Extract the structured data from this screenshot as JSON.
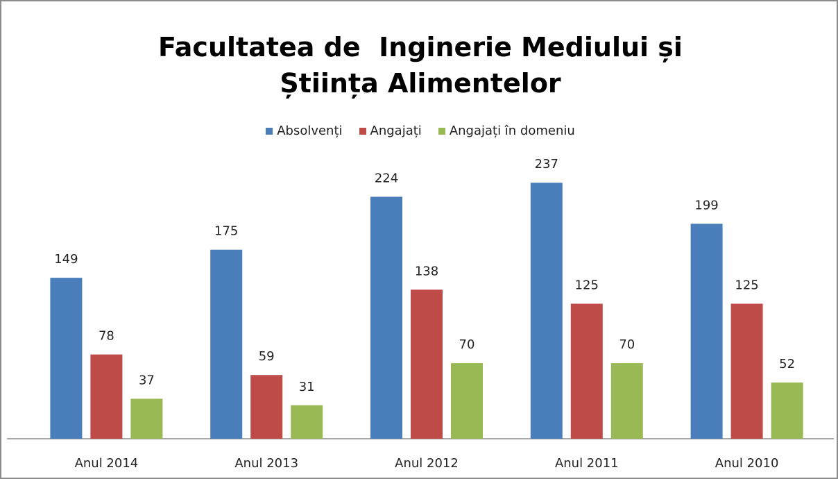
{
  "chart_data": {
    "type": "bar",
    "title": "Facultatea de  Inginerie Mediului și Știința Alimentelor",
    "categories": [
      "Anul 2014",
      "Anul 2013",
      "Anul 2012",
      "Anul 2011",
      "Anul 2010"
    ],
    "series": [
      {
        "name": "Absolvenți",
        "color": "#4a7ebb",
        "values": [
          149,
          175,
          224,
          237,
          199
        ]
      },
      {
        "name": "Angajați",
        "color": "#be4b48",
        "values": [
          78,
          59,
          138,
          125,
          125
        ]
      },
      {
        "name": "Angajați în domeniu",
        "color": "#98b954",
        "values": [
          37,
          31,
          70,
          70,
          52
        ]
      }
    ],
    "ylim": [
      0,
      250
    ],
    "legend": "top"
  }
}
